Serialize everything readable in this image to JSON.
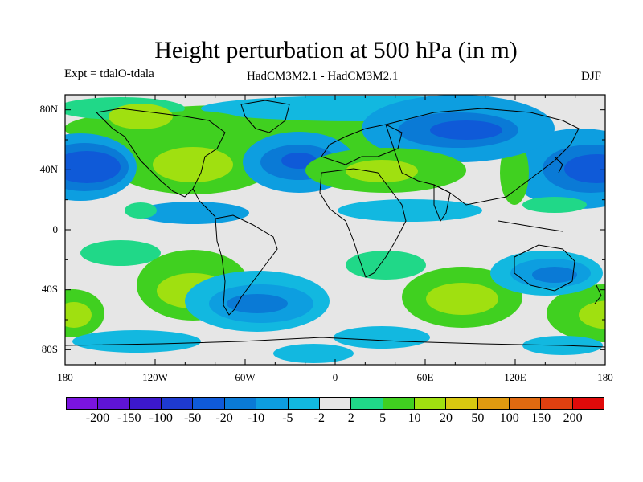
{
  "title": "Height perturbation at 500 hPa (in m)",
  "experiment": "Expt = tdalO-tdala",
  "model": "HadCM3M2.1 - HadCM3M2.1",
  "season": "DJF",
  "y_axis_labels": [
    "80N",
    "40N",
    "0",
    "40S",
    "80S"
  ],
  "x_axis_labels": [
    "180",
    "120W",
    "60W",
    "0",
    "60E",
    "120E",
    "180"
  ],
  "colorbar": {
    "labels": [
      "-200",
      "-150",
      "-100",
      "-50",
      "-20",
      "-10",
      "-5",
      "-2",
      "2",
      "5",
      "10",
      "20",
      "50",
      "100",
      "150",
      "200"
    ],
    "colors": [
      "#7a14e0",
      "#5f14d6",
      "#3c18cc",
      "#1e3ad0",
      "#0f5ad8",
      "#0a7ad6",
      "#0d9ee0",
      "#12b8e0",
      "#e6e6e6",
      "#20d888",
      "#40d020",
      "#a0e010",
      "#d8c810",
      "#e09a10",
      "#e06a10",
      "#e04010",
      "#e00a0a"
    ]
  },
  "chart_data": {
    "type": "heatmap",
    "title": "Height perturbation at 500 hPa (in m)",
    "units": "m",
    "x_range": [
      -180,
      180
    ],
    "y_range": [
      -90,
      90
    ],
    "levels": [
      -200,
      -150,
      -100,
      -50,
      -20,
      -10,
      -5,
      -2,
      2,
      5,
      10,
      20,
      50,
      100,
      150,
      200
    ],
    "features": [
      {
        "name": "north-pacific-low",
        "lon": 165,
        "lat": 45,
        "value": -20
      },
      {
        "name": "east-pacific-low",
        "lon": -165,
        "lat": 42,
        "value": -20
      },
      {
        "name": "north-atlantic-low",
        "lon": -20,
        "lat": 45,
        "value": -20
      },
      {
        "name": "siberian-low",
        "lon": 100,
        "lat": 68,
        "value": -20
      },
      {
        "name": "north-america-high",
        "lon": -100,
        "lat": 42,
        "value": 20
      },
      {
        "name": "mediterranean-high",
        "lon": 30,
        "lat": 38,
        "value": 20
      },
      {
        "name": "south-atlantic-low",
        "lon": -35,
        "lat": -50,
        "value": -20
      },
      {
        "name": "south-indian-high",
        "lon": 85,
        "lat": -48,
        "value": 20
      },
      {
        "name": "south-pacific-high",
        "lon": -110,
        "lat": -42,
        "value": 20
      },
      {
        "name": "australia-low",
        "lon": 130,
        "lat": -30,
        "value": -10
      },
      {
        "name": "south-east-pacific-high",
        "lon": 165,
        "lat": -50,
        "value": 20
      }
    ]
  }
}
